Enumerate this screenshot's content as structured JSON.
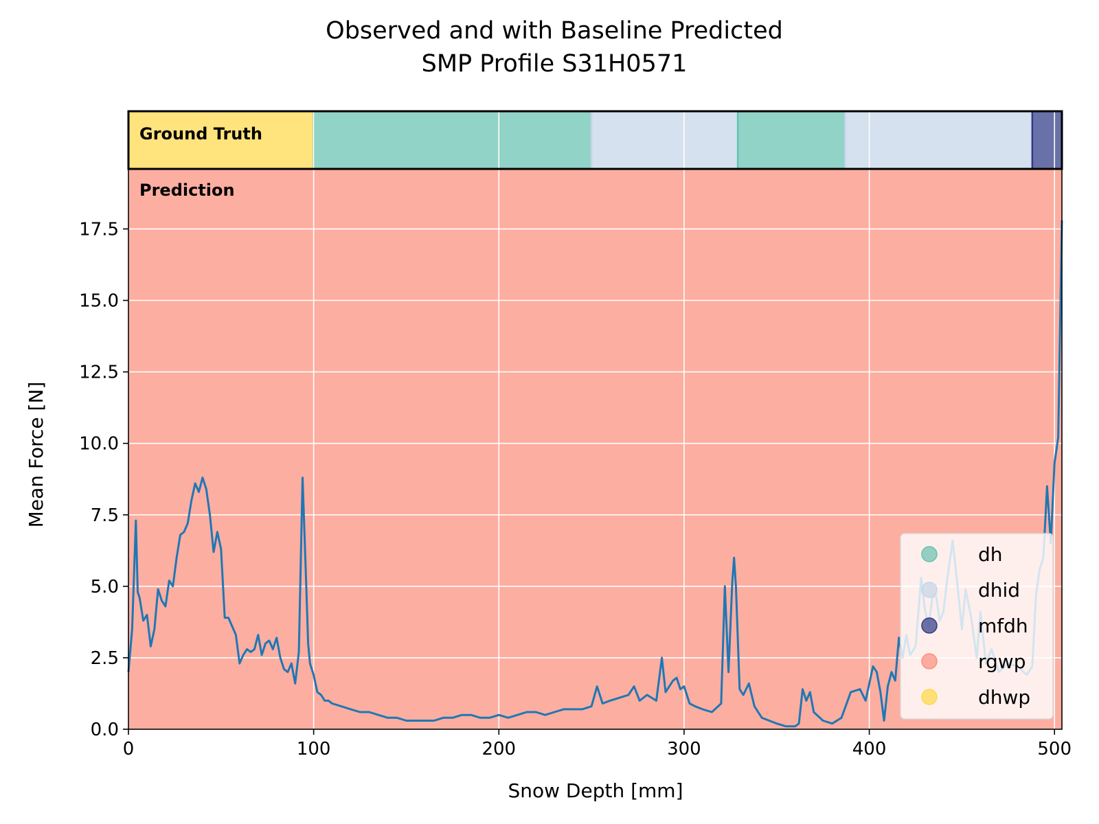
{
  "chart_data": {
    "type": "line",
    "title": [
      "Observed and with Baseline Predicted",
      "SMP Profile S31H0571"
    ],
    "xlabel": "Snow Depth [mm]",
    "ylabel": "Mean Force [N]",
    "xlim": [
      0,
      504
    ],
    "ylim": [
      0,
      19.6
    ],
    "xticks": [
      0,
      100,
      200,
      300,
      400,
      500
    ],
    "yticks": [
      "0.0",
      "2.5",
      "5.0",
      "7.5",
      "10.0",
      "12.5",
      "15.0",
      "17.5"
    ],
    "ytick_values": [
      0,
      2.5,
      5,
      7.5,
      10,
      12.5,
      15,
      17.5
    ],
    "grid": true,
    "line_color": "#1f77b4",
    "ground_truth_label": "Ground Truth",
    "prediction_label": "Prediction",
    "prediction_class": "rgwp",
    "classes": [
      {
        "name": "dh",
        "color": "#66c2b0"
      },
      {
        "name": "dhid",
        "color": "#c5d5e8"
      },
      {
        "name": "mfdh",
        "color": "#2f3a86"
      },
      {
        "name": "rgwp",
        "color": "#fb8f7d"
      },
      {
        "name": "dhwp",
        "color": "#ffd84a"
      }
    ],
    "ground_truth_segments": [
      {
        "from": 0,
        "to": 100,
        "class": "dhwp"
      },
      {
        "from": 100,
        "to": 250,
        "class": "dh"
      },
      {
        "from": 250,
        "to": 329,
        "class": "dhid"
      },
      {
        "from": 329,
        "to": 387,
        "class": "dh"
      },
      {
        "from": 387,
        "to": 488,
        "class": "dhid"
      },
      {
        "from": 488,
        "to": 504,
        "class": "mfdh"
      }
    ],
    "legend": {
      "entries": [
        "dh",
        "dhid",
        "mfdh",
        "rgwp",
        "dhwp"
      ],
      "position": "lower-right"
    },
    "series": [
      {
        "x": [
          0,
          2,
          4,
          5,
          6,
          8,
          10,
          12,
          14,
          16,
          18,
          20,
          22,
          24,
          26,
          28,
          30,
          32,
          34,
          36,
          38,
          40,
          42,
          44,
          46,
          48,
          50,
          52,
          54,
          56,
          58,
          60,
          62,
          64,
          66,
          68,
          70,
          72,
          74,
          76,
          78,
          80,
          82,
          84,
          86,
          88,
          90,
          92,
          94,
          96,
          97,
          98,
          100,
          102,
          104,
          106,
          108,
          110,
          115,
          120,
          125,
          130,
          135,
          140,
          145,
          150,
          155,
          160,
          165,
          170,
          175,
          180,
          185,
          190,
          195,
          200,
          205,
          210,
          215,
          220,
          225,
          230,
          235,
          240,
          245,
          250,
          253,
          256,
          260,
          265,
          270,
          273,
          276,
          280,
          285,
          288,
          290,
          292,
          294,
          296,
          298,
          300,
          303,
          306,
          310,
          315,
          320,
          322,
          324,
          326,
          327,
          328,
          330,
          332,
          335,
          338,
          342,
          346,
          350,
          355,
          360,
          362,
          364,
          366,
          368,
          370,
          375,
          380,
          385,
          390,
          395,
          398,
          400,
          402,
          404,
          406,
          408,
          410,
          412,
          414,
          416,
          418,
          420,
          422,
          425,
          428,
          430,
          432,
          434,
          436,
          438,
          440,
          442,
          445,
          448,
          450,
          452,
          455,
          458,
          460,
          463,
          466,
          470,
          475,
          480,
          485,
          488,
          490,
          492,
          494,
          496,
          498,
          500,
          502,
          504
        ],
        "y": [
          2.0,
          3.5,
          7.3,
          4.8,
          4.6,
          3.8,
          4.0,
          2.9,
          3.5,
          4.9,
          4.5,
          4.3,
          5.2,
          5.0,
          6.0,
          6.8,
          6.9,
          7.2,
          8.0,
          8.6,
          8.3,
          8.8,
          8.4,
          7.5,
          6.2,
          6.9,
          6.3,
          3.9,
          3.9,
          3.6,
          3.3,
          2.3,
          2.6,
          2.8,
          2.7,
          2.8,
          3.3,
          2.6,
          3.0,
          3.1,
          2.8,
          3.2,
          2.5,
          2.1,
          2.0,
          2.3,
          1.6,
          2.7,
          8.8,
          5.0,
          3.0,
          2.3,
          1.9,
          1.3,
          1.2,
          1.0,
          1.0,
          0.9,
          0.8,
          0.7,
          0.6,
          0.6,
          0.5,
          0.4,
          0.4,
          0.3,
          0.3,
          0.3,
          0.3,
          0.4,
          0.4,
          0.5,
          0.5,
          0.4,
          0.4,
          0.5,
          0.4,
          0.5,
          0.6,
          0.6,
          0.5,
          0.6,
          0.7,
          0.7,
          0.7,
          0.8,
          1.5,
          0.9,
          1.0,
          1.1,
          1.2,
          1.5,
          1.0,
          1.2,
          1.0,
          2.5,
          1.3,
          1.5,
          1.7,
          1.8,
          1.4,
          1.5,
          0.9,
          0.8,
          0.7,
          0.6,
          0.9,
          5.0,
          2.0,
          5.1,
          6.0,
          5.0,
          1.4,
          1.2,
          1.6,
          0.8,
          0.4,
          0.3,
          0.2,
          0.1,
          0.1,
          0.2,
          1.4,
          1.0,
          1.3,
          0.6,
          0.3,
          0.2,
          0.4,
          1.3,
          1.4,
          1.0,
          1.6,
          2.2,
          2.0,
          1.3,
          0.3,
          1.5,
          2.0,
          1.7,
          3.2,
          2.5,
          3.3,
          2.6,
          2.9,
          5.3,
          4.2,
          3.6,
          4.6,
          4.7,
          3.8,
          4.1,
          5.2,
          6.6,
          4.8,
          3.5,
          4.9,
          3.9,
          2.5,
          4.1,
          2.3,
          2.8,
          2.0,
          2.3,
          2.2,
          1.9,
          2.2,
          4.7,
          5.6,
          6.0,
          8.5,
          6.5,
          9.3,
          10.2,
          17.8
        ]
      }
    ]
  }
}
